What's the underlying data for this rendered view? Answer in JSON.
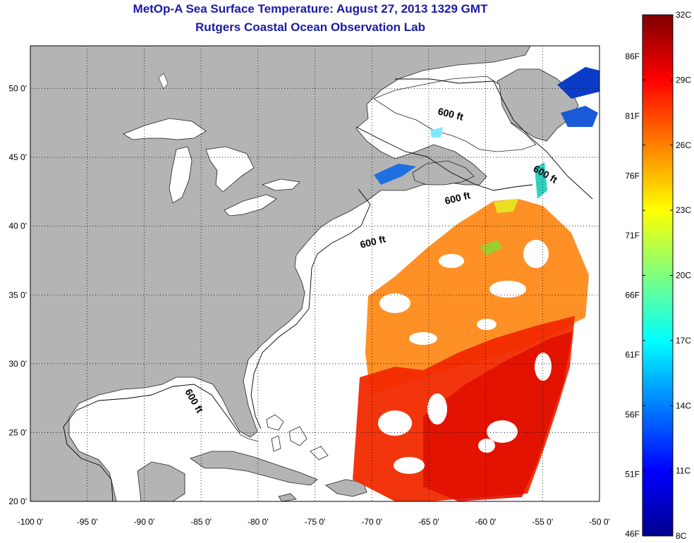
{
  "title_line1": "MetOp-A Sea Surface Temperature:  August 27, 2013 1329 GMT",
  "title_line2": "Rutgers Coastal Ocean Observation Lab",
  "map": {
    "lon_range": [
      -100,
      -50
    ],
    "lat_range": [
      20,
      53
    ],
    "lon_ticks": [
      {
        "value": -100,
        "label": "-100 0'"
      },
      {
        "value": -95,
        "label": "-95 0'"
      },
      {
        "value": -90,
        "label": "-90 0'"
      },
      {
        "value": -85,
        "label": "-85 0'"
      },
      {
        "value": -80,
        "label": "-80 0'"
      },
      {
        "value": -75,
        "label": "-75 0'"
      },
      {
        "value": -70,
        "label": "-70 0'"
      },
      {
        "value": -65,
        "label": "-65 0'"
      },
      {
        "value": -60,
        "label": "-60 0'"
      },
      {
        "value": -55,
        "label": "-55 0'"
      },
      {
        "value": -50,
        "label": "-50 0'"
      }
    ],
    "lat_ticks": [
      {
        "value": 20,
        "label": "20 0'"
      },
      {
        "value": 25,
        "label": "25 0'"
      },
      {
        "value": 30,
        "label": "30 0'"
      },
      {
        "value": 35,
        "label": "35 0'"
      },
      {
        "value": 40,
        "label": "40 0'"
      },
      {
        "value": 45,
        "label": "45 0'"
      },
      {
        "value": 50,
        "label": "50 0'"
      }
    ],
    "isobath_label": "600 ft",
    "land_color": "#b4b4b4",
    "ocean_color": "#ffffff"
  },
  "colorbar": {
    "min_c": 8,
    "max_c": 32,
    "celsius_labels": [
      "32C",
      "29C",
      "26C",
      "23C",
      "20C",
      "17C",
      "14C",
      "11C",
      "8C"
    ],
    "fahrenheit_labels": [
      "86F",
      "81F",
      "76F",
      "71F",
      "66F",
      "61F",
      "56F",
      "51F",
      "46F"
    ],
    "colors": [
      "#7f0000",
      "#ff0000",
      "#ff7f00",
      "#ffff00",
      "#7fff7f",
      "#00ffff",
      "#007fff",
      "#0000ff",
      "#00008f"
    ]
  }
}
